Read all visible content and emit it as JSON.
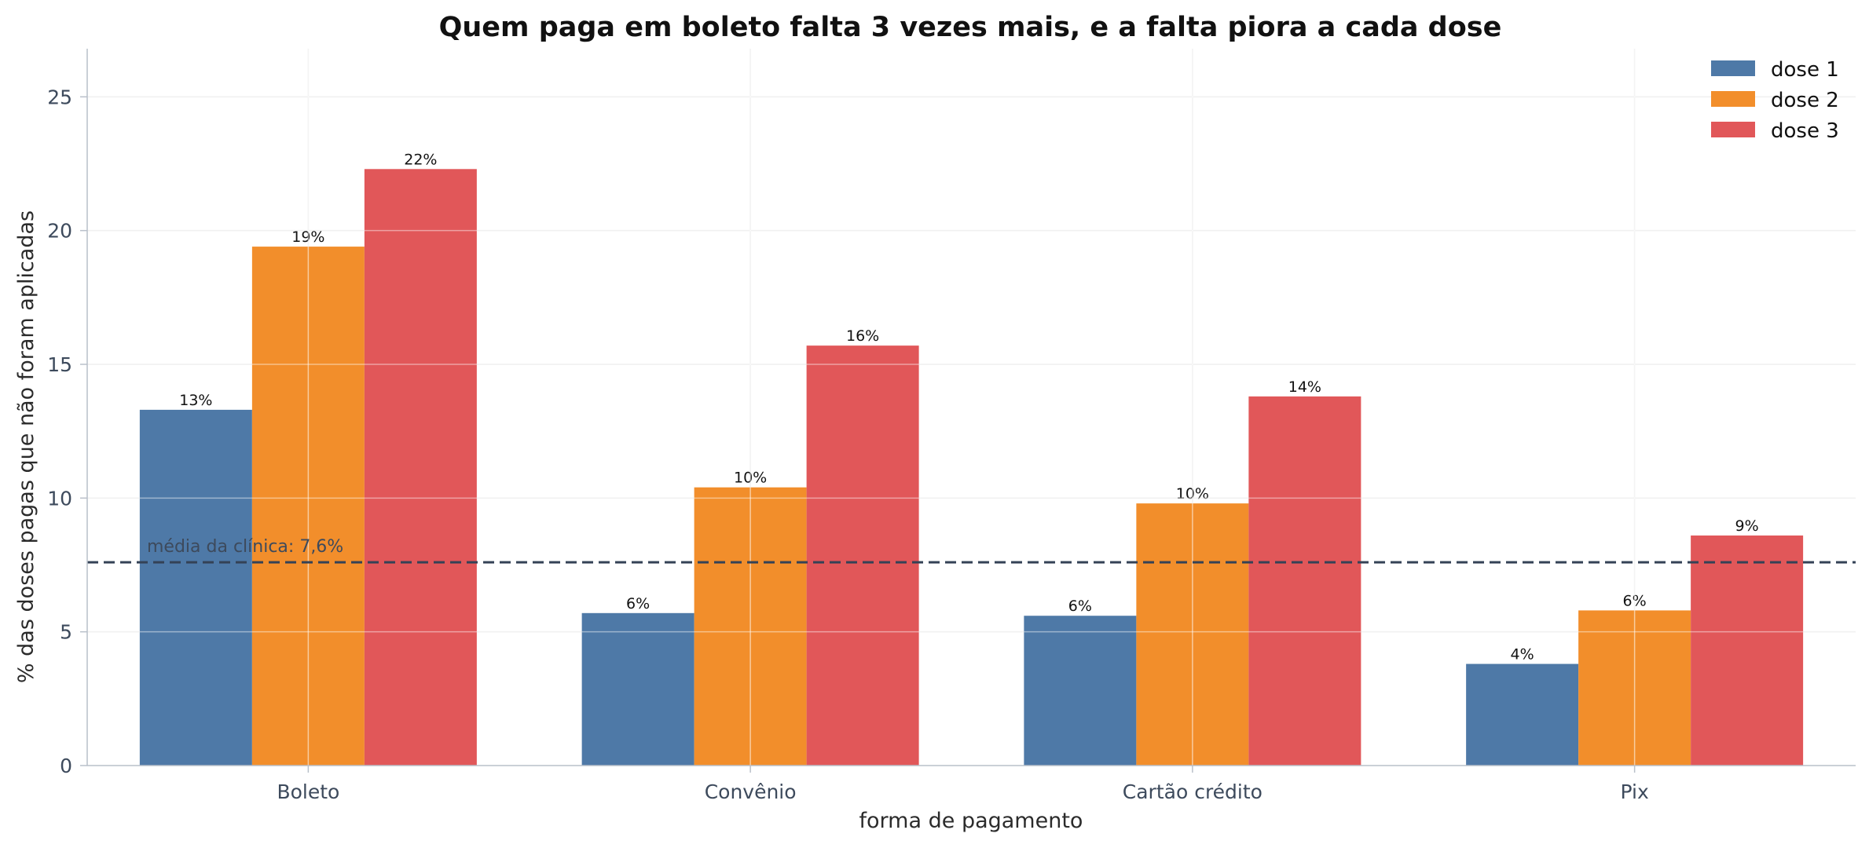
{
  "chart_data": {
    "type": "bar",
    "title": "Quem paga em boleto falta 3 vezes mais, e a falta piora a cada dose",
    "xlabel": "forma de pagamento",
    "ylabel": "% das doses pagas que não foram aplicadas",
    "ylim": [
      0,
      26.8
    ],
    "yticks": [
      0,
      5,
      10,
      15,
      20,
      25
    ],
    "categories": [
      "Boleto",
      "Convênio",
      "Cartão crédito",
      "Pix"
    ],
    "series": [
      {
        "name": "dose 1",
        "color": "#4e79a7",
        "values": [
          13.3,
          5.7,
          5.6,
          3.8
        ],
        "labels": [
          "13%",
          "6%",
          "6%",
          "4%"
        ]
      },
      {
        "name": "dose 2",
        "color": "#f28e2b",
        "values": [
          19.4,
          10.4,
          9.8,
          5.8
        ],
        "labels": [
          "19%",
          "10%",
          "10%",
          "6%"
        ]
      },
      {
        "name": "dose 3",
        "color": "#e15759",
        "values": [
          22.3,
          15.7,
          13.8,
          8.6
        ],
        "labels": [
          "22%",
          "16%",
          "14%",
          "9%"
        ]
      }
    ],
    "reference_line": {
      "value": 7.6,
      "label": "média da clínica: 7,6%",
      "color": "#344256",
      "style": "dashed"
    },
    "grid": true,
    "legend_position": "top-right"
  }
}
